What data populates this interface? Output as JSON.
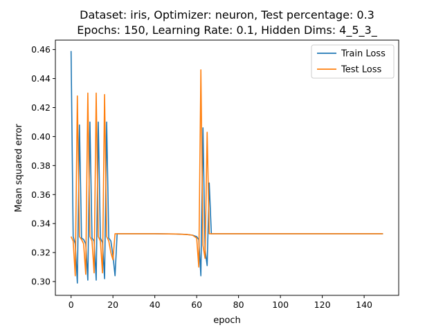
{
  "chart_data": {
    "type": "line",
    "title": [
      "Dataset: iris, Optimizer: neuron, Test percentage: 0.3",
      "Epochs: 150, Learning Rate: 0.1, Hidden Dims: 4_5_3_"
    ],
    "xlabel": "epoch",
    "ylabel": "Mean squared error",
    "xlim": [
      -7.5,
      156.5
    ],
    "ylim": [
      0.2905,
      0.4665
    ],
    "xticks": [
      0,
      20,
      40,
      60,
      80,
      100,
      120,
      140
    ],
    "yticks": [
      0.3,
      0.32,
      0.34,
      0.36,
      0.38,
      0.4,
      0.42,
      0.44,
      0.46
    ],
    "ytick_labels": [
      "0.30",
      "0.32",
      "0.34",
      "0.36",
      "0.38",
      "0.40",
      "0.42",
      "0.44",
      "0.46"
    ],
    "grid": false,
    "legend_position": "top-right",
    "series": [
      {
        "name": "Train Loss",
        "color": "#1f77b4",
        "points": [
          [
            0,
            0.459
          ],
          [
            1,
            0.331
          ],
          [
            2,
            0.326
          ],
          [
            3,
            0.299
          ],
          [
            4,
            0.408
          ],
          [
            5,
            0.33
          ],
          [
            6,
            0.329
          ],
          [
            7,
            0.326
          ],
          [
            8,
            0.301
          ],
          [
            9,
            0.41
          ],
          [
            10,
            0.33
          ],
          [
            11,
            0.328
          ],
          [
            12,
            0.301
          ],
          [
            13,
            0.41
          ],
          [
            14,
            0.33
          ],
          [
            15,
            0.327
          ],
          [
            16,
            0.302
          ],
          [
            17,
            0.41
          ],
          [
            18,
            0.33
          ],
          [
            19,
            0.328
          ],
          [
            20,
            0.318
          ],
          [
            21,
            0.304
          ],
          [
            22,
            0.333
          ],
          [
            30,
            0.333
          ],
          [
            40,
            0.333
          ],
          [
            50,
            0.3328
          ],
          [
            55,
            0.3325
          ],
          [
            58,
            0.332
          ],
          [
            60,
            0.331
          ],
          [
            61,
            0.329
          ],
          [
            62,
            0.304
          ],
          [
            63,
            0.406
          ],
          [
            64,
            0.322
          ],
          [
            65,
            0.311
          ],
          [
            66,
            0.368
          ],
          [
            67,
            0.333
          ],
          [
            80,
            0.333
          ],
          [
            100,
            0.333
          ],
          [
            120,
            0.333
          ],
          [
            149,
            0.333
          ]
        ]
      },
      {
        "name": "Test Loss",
        "color": "#ff7f0e",
        "points": [
          [
            0,
            0.331
          ],
          [
            1,
            0.328
          ],
          [
            2,
            0.304
          ],
          [
            3,
            0.428
          ],
          [
            4,
            0.331
          ],
          [
            5,
            0.329
          ],
          [
            6,
            0.326
          ],
          [
            7,
            0.305
          ],
          [
            8,
            0.43
          ],
          [
            9,
            0.331
          ],
          [
            10,
            0.328
          ],
          [
            11,
            0.306
          ],
          [
            12,
            0.43
          ],
          [
            13,
            0.331
          ],
          [
            14,
            0.328
          ],
          [
            15,
            0.306
          ],
          [
            16,
            0.429
          ],
          [
            17,
            0.331
          ],
          [
            18,
            0.328
          ],
          [
            19,
            0.32
          ],
          [
            20,
            0.315
          ],
          [
            21,
            0.333
          ],
          [
            30,
            0.333
          ],
          [
            40,
            0.333
          ],
          [
            50,
            0.3328
          ],
          [
            55,
            0.3325
          ],
          [
            58,
            0.332
          ],
          [
            60,
            0.33
          ],
          [
            61,
            0.31
          ],
          [
            62,
            0.446
          ],
          [
            63,
            0.325
          ],
          [
            64,
            0.316
          ],
          [
            65,
            0.403
          ],
          [
            66,
            0.333
          ],
          [
            80,
            0.333
          ],
          [
            100,
            0.333
          ],
          [
            120,
            0.333
          ],
          [
            149,
            0.333
          ]
        ]
      }
    ]
  }
}
